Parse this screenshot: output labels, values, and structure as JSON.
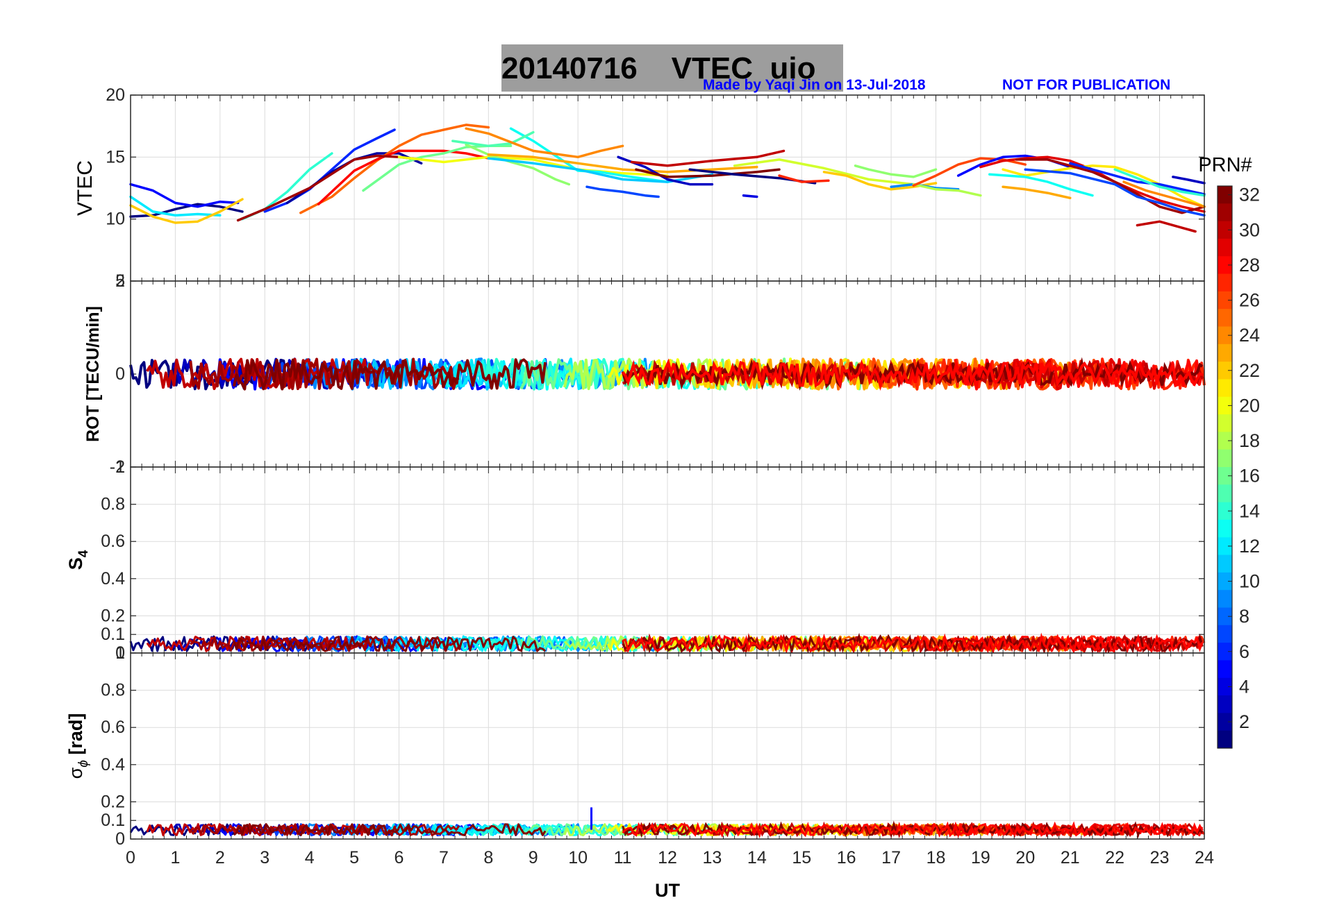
{
  "header": {
    "title_date": "20140716",
    "title_label": "VTEC",
    "title_station": "uio",
    "credit": "Made by Yaqi Jin on 13-Jul-2018",
    "notice": "NOT FOR PUBLICATION",
    "notice_color": "#0000ff"
  },
  "chart_data": {
    "type": "line",
    "x_label": "UT",
    "x_ticks": [
      "0",
      "1",
      "2",
      "3",
      "4",
      "5",
      "6",
      "7",
      "8",
      "9",
      "10",
      "11",
      "12",
      "13",
      "14",
      "15",
      "16",
      "17",
      "18",
      "19",
      "20",
      "21",
      "22",
      "23",
      "24"
    ],
    "xlim": [
      0,
      24
    ],
    "colorbar": {
      "label": "PRN#",
      "range": [
        1,
        32
      ],
      "ticks": [
        "2",
        "4",
        "6",
        "8",
        "10",
        "12",
        "14",
        "16",
        "18",
        "20",
        "22",
        "24",
        "26",
        "28",
        "30",
        "32"
      ],
      "colormap": "jet"
    },
    "panels": [
      {
        "name": "vtec",
        "ylabel": "VTEC",
        "ylim": [
          5,
          20
        ],
        "y_ticks": [
          "10",
          "15",
          "20"
        ],
        "y_tick_values": [
          10,
          15,
          20
        ],
        "bottom_tick": "5",
        "series": [
          {
            "prn": 1,
            "x": [
              0,
              0.5,
              1,
              1.5,
              2,
              2.5
            ],
            "y": [
              10.2,
              10.3,
              10.8,
              11.2,
              11.0,
              10.6
            ]
          },
          {
            "prn": 5,
            "x": [
              0,
              0.5,
              1,
              1.5,
              2,
              2.4
            ],
            "y": [
              12.8,
              12.3,
              11.3,
              11.0,
              11.4,
              11.3
            ]
          },
          {
            "prn": 6,
            "x": [
              3,
              3.5,
              4,
              4.5,
              5,
              5.5,
              5.9
            ],
            "y": [
              10.6,
              11.3,
              12.4,
              14.0,
              15.6,
              16.5,
              17.2
            ]
          },
          {
            "prn": 14,
            "x": [
              2.5,
              3,
              3.5,
              4,
              4.5
            ],
            "y": [
              10.0,
              10.8,
              12.2,
              14.0,
              15.3
            ]
          },
          {
            "prn": 12,
            "x": [
              0,
              0.5,
              1,
              1.5,
              2
            ],
            "y": [
              11.8,
              10.6,
              10.3,
              10.4,
              10.3
            ]
          },
          {
            "prn": 22,
            "x": [
              0,
              0.5,
              1,
              1.5,
              2,
              2.5
            ],
            "y": [
              11.1,
              10.2,
              9.7,
              9.8,
              10.6,
              11.6
            ]
          },
          {
            "prn": 2,
            "x": [
              3.5,
              4,
              4.5,
              5,
              5.5,
              6,
              6.5
            ],
            "y": [
              11.3,
              12.5,
              13.8,
              14.8,
              15.3,
              15.3,
              14.5
            ]
          },
          {
            "prn": 25,
            "x": [
              3.8,
              4.5,
              5,
              5.5,
              6,
              6.5,
              7,
              7.5,
              8
            ],
            "y": [
              10.5,
              11.8,
              13.3,
              14.7,
              15.9,
              16.8,
              17.2,
              17.6,
              17.4
            ]
          },
          {
            "prn": 28,
            "x": [
              4.2,
              5,
              5.5,
              6,
              6.5,
              7,
              7.5,
              8
            ],
            "y": [
              11.2,
              13.9,
              14.8,
              15.5,
              15.5,
              15.5,
              15.3,
              14.9
            ]
          },
          {
            "prn": 31,
            "x": [
              2.4,
              3,
              4,
              5,
              5.5,
              6,
              6.5
            ],
            "y": [
              9.9,
              10.8,
              12.5,
              14.8,
              15.1,
              15.0,
              14.8
            ]
          },
          {
            "prn": 16,
            "x": [
              5.2,
              6,
              6.5,
              7,
              7.5,
              8,
              8.5
            ],
            "y": [
              12.3,
              14.4,
              15.0,
              15.3,
              15.8,
              15.9,
              15.9
            ]
          },
          {
            "prn": 20,
            "x": [
              6,
              7,
              8,
              9,
              10,
              11,
              12
            ],
            "y": [
              15.0,
              14.6,
              15.0,
              14.8,
              14.0,
              13.7,
              13.5
            ]
          },
          {
            "prn": 17,
            "x": [
              7.5,
              8,
              8.5,
              9,
              9.5,
              9.8
            ],
            "y": [
              16.0,
              15.2,
              14.6,
              14.1,
              13.2,
              12.8
            ]
          },
          {
            "prn": 13,
            "x": [
              8.5,
              9,
              9.5,
              10,
              10.5,
              11,
              12
            ],
            "y": [
              17.3,
              16.3,
              15.1,
              13.9,
              13.8,
              13.5,
              13.0
            ]
          },
          {
            "prn": 15,
            "x": [
              7.2,
              8,
              8.5,
              9.0
            ],
            "y": [
              16.3,
              15.9,
              16.1,
              17.0
            ]
          },
          {
            "prn": 24,
            "x": [
              7.5,
              8,
              9,
              10,
              10.5,
              11
            ],
            "y": [
              17.3,
              16.9,
              15.5,
              15.0,
              15.5,
              15.9
            ]
          },
          {
            "prn": 11,
            "x": [
              8,
              9,
              10,
              11,
              12,
              13
            ],
            "y": [
              14.9,
              14.5,
              14.0,
              13.2,
              13.0,
              13.6
            ]
          },
          {
            "prn": 23,
            "x": [
              8,
              9,
              10,
              11,
              12,
              13,
              14
            ],
            "y": [
              15.2,
              15.0,
              14.5,
              14.0,
              13.8,
              14.0,
              14.2
            ]
          },
          {
            "prn": 7,
            "x": [
              10.2,
              10.5,
              11,
              11.5,
              11.8
            ],
            "y": [
              12.6,
              12.4,
              12.2,
              11.9,
              11.8
            ]
          },
          {
            "prn": 3,
            "x": [
              10.9,
              11.5,
              12,
              12.5,
              13
            ],
            "y": [
              15.0,
              14.2,
              13.2,
              12.8,
              12.8
            ]
          },
          {
            "prn": 4,
            "x": [
              13.7,
              14.0
            ],
            "y": [
              11.9,
              11.8
            ]
          },
          {
            "prn": 30,
            "x": [
              11.2,
              12,
              13,
              14,
              14.6
            ],
            "y": [
              14.6,
              14.3,
              14.7,
              15.0,
              15.5
            ]
          },
          {
            "prn": 32,
            "x": [
              11.3,
              12,
              13,
              14,
              14.5
            ],
            "y": [
              14.0,
              13.4,
              13.5,
              13.8,
              14.0
            ]
          },
          {
            "prn": 1,
            "x": [
              12.5,
              13.5,
              14.5,
              15.3
            ],
            "y": [
              14.0,
              13.6,
              13.3,
              12.9
            ]
          },
          {
            "prn": 27,
            "x": [
              14.5,
              15,
              15.6
            ],
            "y": [
              13.5,
              13.0,
              13.1
            ]
          },
          {
            "prn": 19,
            "x": [
              13.5,
              14.5,
              15.5,
              16.5,
              17.5
            ],
            "y": [
              14.3,
              14.8,
              14.1,
              13.2,
              12.8
            ]
          },
          {
            "prn": 22,
            "x": [
              15.5,
              16,
              16.5,
              17,
              17.5,
              18
            ],
            "y": [
              13.8,
              13.5,
              12.8,
              12.4,
              12.6,
              12.9
            ]
          },
          {
            "prn": 17,
            "x": [
              16.2,
              16.5,
              17,
              17.5,
              18
            ],
            "y": [
              14.3,
              14.0,
              13.6,
              13.4,
              14.0
            ]
          },
          {
            "prn": 9,
            "x": [
              17,
              17.5,
              18,
              18.5
            ],
            "y": [
              12.6,
              12.8,
              12.5,
              12.4
            ]
          },
          {
            "prn": 18,
            "x": [
              17.5,
              18,
              18.5,
              19
            ],
            "y": [
              12.8,
              12.4,
              12.3,
              11.9
            ]
          },
          {
            "prn": 26,
            "x": [
              17.5,
              18,
              18.5,
              19,
              19.5,
              20
            ],
            "y": [
              12.7,
              13.5,
              14.4,
              14.9,
              14.8,
              14.4
            ]
          },
          {
            "prn": 5,
            "x": [
              18.5,
              19,
              19.5,
              20,
              20.5,
              21
            ],
            "y": [
              13.5,
              14.4,
              15.0,
              15.1,
              14.8,
              14.2
            ]
          },
          {
            "prn": 29,
            "x": [
              19,
              19.5,
              20,
              20.5,
              21,
              21.5,
              22,
              22.5,
              23,
              23.5,
              24
            ],
            "y": [
              14.2,
              14.7,
              14.9,
              15.0,
              14.7,
              14.0,
              13.0,
              12.2,
              11.5,
              11.0,
              10.6
            ]
          },
          {
            "prn": 21,
            "x": [
              19.5,
              20,
              20.5,
              21,
              21.5,
              22,
              22.5,
              23,
              23.5,
              24
            ],
            "y": [
              14.0,
              13.5,
              13.8,
              14.1,
              14.3,
              14.2,
              13.6,
              12.8,
              11.8,
              11.0
            ]
          },
          {
            "prn": 23,
            "x": [
              19.5,
              20,
              20.5,
              21
            ],
            "y": [
              12.6,
              12.4,
              12.1,
              11.7
            ]
          },
          {
            "prn": 13,
            "x": [
              19.2,
              20,
              20.5,
              21,
              21.5
            ],
            "y": [
              13.6,
              13.4,
              13.0,
              12.4,
              11.9
            ]
          },
          {
            "prn": 31,
            "x": [
              19.8,
              20.5,
              21,
              21.5,
              22,
              22.5,
              23,
              23.5,
              24
            ],
            "y": [
              14.8,
              14.8,
              14.3,
              13.8,
              13.0,
              12.0,
              11.0,
              10.5,
              11.0
            ]
          },
          {
            "prn": 7,
            "x": [
              20,
              21,
              22,
              22.5,
              23,
              23.5,
              24
            ],
            "y": [
              14.0,
              13.7,
              12.8,
              11.8,
              11.3,
              10.7,
              10.3
            ]
          },
          {
            "prn": 6,
            "x": [
              21,
              21.5,
              22,
              22.5,
              23,
              23.5,
              24
            ],
            "y": [
              14.5,
              14.0,
              13.5,
              13.0,
              12.8,
              12.4,
              12.0
            ]
          },
          {
            "prn": 14,
            "x": [
              22,
              22.5,
              23,
              23.5,
              24
            ],
            "y": [
              14.0,
              13.3,
              12.6,
              12.2,
              11.9
            ]
          },
          {
            "prn": 3,
            "x": [
              23.3,
              23.6,
              24
            ],
            "y": [
              13.4,
              13.2,
              12.9
            ]
          },
          {
            "prn": 24,
            "x": [
              22.2,
              22.7,
              23.2,
              23.7,
              24
            ],
            "y": [
              13.0,
              12.3,
              11.8,
              11.3,
              11.0
            ]
          },
          {
            "prn": 30,
            "x": [
              22.5,
              23,
              23.5,
              23.8
            ],
            "y": [
              9.5,
              9.8,
              9.3,
              9.0
            ]
          }
        ]
      },
      {
        "name": "rot",
        "ylabel": "ROT [TECU/min]",
        "ylim": [
          -2,
          2
        ],
        "y_ticks": [
          "-2",
          "0",
          "2"
        ],
        "y_tick_values": [
          -2,
          0,
          2
        ],
        "band": {
          "center": 0,
          "amplitude": 0.3,
          "description": "dense multi-PRN ROT traces around 0"
        }
      },
      {
        "name": "s4",
        "ylabel": "S4",
        "ylim": [
          0,
          1
        ],
        "y_ticks": [
          "0",
          "0.1",
          "0.2",
          "0.4",
          "0.6",
          "0.8",
          "1"
        ],
        "y_tick_values": [
          0,
          0.1,
          0.2,
          0.4,
          0.6,
          0.8,
          1
        ],
        "band": {
          "center": 0.05,
          "amplitude": 0.04,
          "description": "S4 traces near 0.03-0.08"
        }
      },
      {
        "name": "sigma_phi",
        "ylabel": "σϕ [rad]",
        "ylabel_main": "σ",
        "ylabel_sub": "ϕ",
        "ylabel_unit": "[rad]",
        "ylim": [
          0,
          1
        ],
        "y_ticks": [
          "0",
          "0.1",
          "0.2",
          "0.4",
          "0.6",
          "0.8",
          "1"
        ],
        "y_tick_values": [
          0,
          0.1,
          0.2,
          0.4,
          0.6,
          0.8,
          1
        ],
        "band": {
          "center": 0.05,
          "amplitude": 0.03,
          "description": "sigma phi traces near 0.04-0.07 with a spike to ~0.17 at UT 10.3"
        }
      }
    ]
  }
}
